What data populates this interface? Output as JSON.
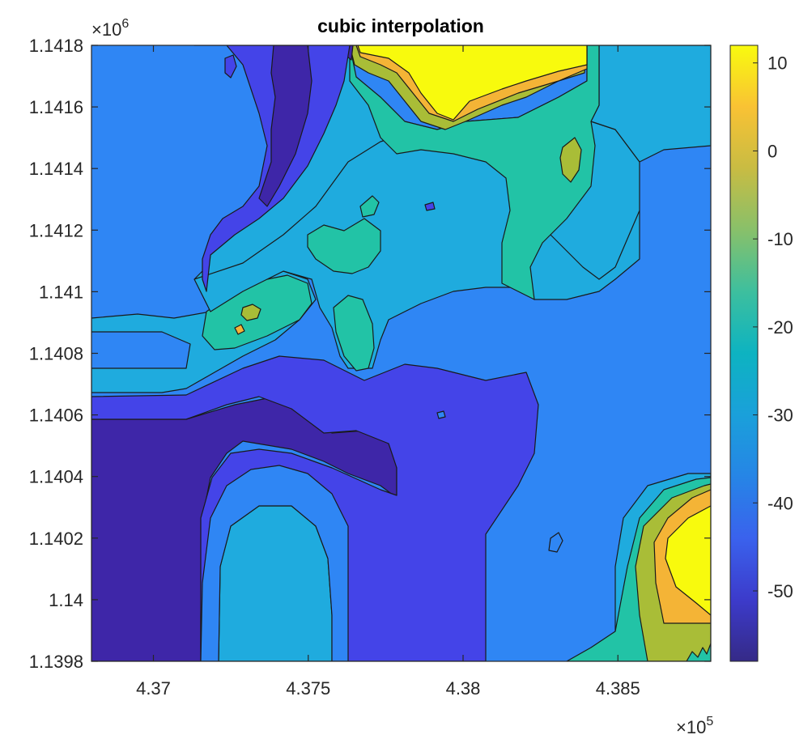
{
  "chart_data": {
    "type": "contour",
    "title": "cubic interpolation",
    "xlim": [
      436800,
      438800
    ],
    "ylim": [
      1139800,
      1141800
    ],
    "x_ticks": [
      437000,
      437500,
      438000,
      438500
    ],
    "x_tick_labels": [
      "4.37",
      "4.375",
      "4.38",
      "4.385"
    ],
    "x_exponent": {
      "base": "×10",
      "power": "5"
    },
    "y_ticks": [
      1139800,
      1140000,
      1140200,
      1140400,
      1140600,
      1140800,
      1141000,
      1141200,
      1141400,
      1141600,
      1141800
    ],
    "y_tick_labels": [
      "1.1398",
      "1.14",
      "1.1402",
      "1.1404",
      "1.1406",
      "1.1408",
      "1.141",
      "1.1412",
      "1.1414",
      "1.1416",
      "1.1418"
    ],
    "y_exponent": {
      "base": "×10",
      "power": "6"
    },
    "colorbar": {
      "colormap": "parula",
      "clim": [
        -58,
        12
      ],
      "ticks": [
        10,
        0,
        -10,
        -20,
        -30,
        -40,
        -50
      ],
      "tick_labels": [
        "10",
        "0",
        "-10",
        "-20",
        "-30",
        "-40",
        "-50"
      ]
    },
    "contour_levels": [
      -52,
      -45,
      -38,
      -31,
      -24,
      -17,
      -10,
      -3,
      4
    ],
    "level_colors": [
      "#3e26a8",
      "#4444e8",
      "#2f86f4",
      "#1fabde",
      "#22c3a6",
      "#64c565",
      "#a9bd37",
      "#f4b436",
      "#f8fa0d"
    ],
    "regions": [
      {
        "name": "background",
        "level": -38
      },
      {
        "name": "top-yellow-peak",
        "level": 4,
        "approx_center": [
          437950,
          1141720
        ],
        "peak": 12
      },
      {
        "name": "bottom-right-yellow-peak",
        "level": 4,
        "approx_center": [
          438750,
          1140150
        ],
        "peak": 12
      },
      {
        "name": "bottom-left-low",
        "level": -52,
        "approx_center": [
          437100,
          1140300
        ],
        "min": -58
      },
      {
        "name": "top-left-low-ridge",
        "level": -45,
        "approx_center": [
          437400,
          1141500
        ]
      },
      {
        "name": "central-cyan-plateau",
        "level": -31,
        "approx_center": [
          437900,
          1141100
        ]
      }
    ]
  }
}
